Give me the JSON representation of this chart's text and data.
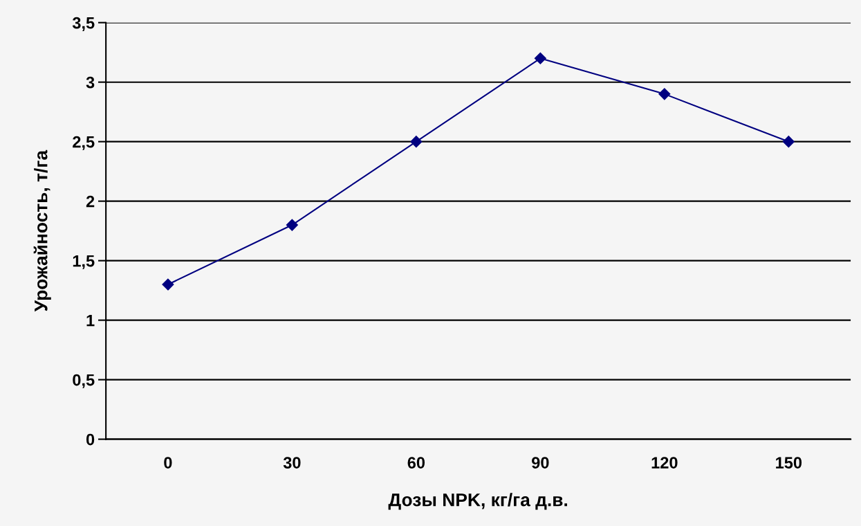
{
  "chart_data": {
    "type": "line",
    "xlabel": "Дозы NPK, кг/га д.в.",
    "ylabel": "Урожайность, т/га",
    "categories": [
      "0",
      "30",
      "60",
      "90",
      "120",
      "150"
    ],
    "series": [
      {
        "color": "#000080",
        "values": [
          1.3,
          1.8,
          2.5,
          3.2,
          2.9,
          2.5
        ]
      }
    ],
    "ylim": [
      0,
      3.5
    ],
    "yticks": [
      {
        "value": 0,
        "label": "0"
      },
      {
        "value": 0.5,
        "label": "0,5"
      },
      {
        "value": 1,
        "label": "1"
      },
      {
        "value": 1.5,
        "label": "1,5"
      },
      {
        "value": 2,
        "label": "2"
      },
      {
        "value": 2.5,
        "label": "2,5"
      },
      {
        "value": 3,
        "label": "3"
      },
      {
        "value": 3.5,
        "label": "3,5"
      }
    ],
    "grid": "y",
    "marker": "diamond",
    "line_style": "solid"
  }
}
